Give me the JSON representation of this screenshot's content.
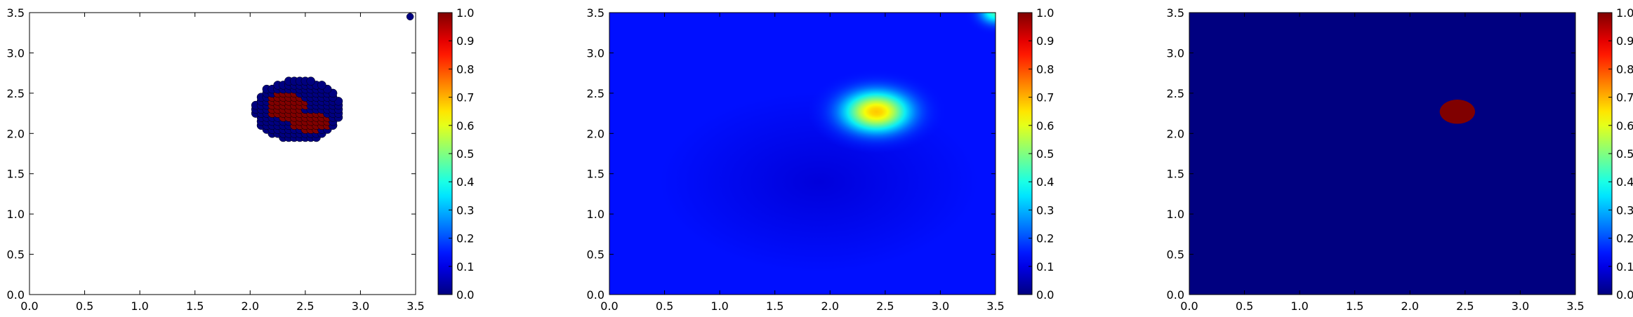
{
  "chart_data": [
    {
      "type": "scatter",
      "xlim": [
        0.0,
        3.5
      ],
      "ylim": [
        0.0,
        3.5
      ],
      "xticks": [
        "0.0",
        "0.5",
        "1.0",
        "1.5",
        "2.0",
        "2.5",
        "3.0",
        "3.5"
      ],
      "yticks": [
        "0.0",
        "0.5",
        "1.0",
        "1.5",
        "2.0",
        "2.5",
        "3.0",
        "3.5"
      ],
      "grid": false,
      "colormap": "jet",
      "colorbar": {
        "range": [
          0.0,
          1.0
        ],
        "ticks": [
          "0.0",
          "0.1",
          "0.2",
          "0.3",
          "0.4",
          "0.5",
          "0.6",
          "0.7",
          "0.8",
          "0.9",
          "1.0"
        ]
      },
      "points": {
        "grid_x": [
          2.05,
          2.1,
          2.15,
          2.2,
          2.25,
          2.3,
          2.35,
          2.4,
          2.45,
          2.5,
          2.55,
          2.6,
          2.65,
          2.7,
          2.75,
          2.8
        ],
        "grid_y": [
          1.95,
          2.0,
          2.05,
          2.1,
          2.15,
          2.2,
          2.25,
          2.3,
          2.35,
          2.4,
          2.45,
          2.5,
          2.55,
          2.6,
          2.65
        ],
        "outer_ellipse": {
          "cx": 2.43,
          "cy": 2.29,
          "rx": 0.39,
          "ry": 0.38,
          "value": 0.0
        },
        "inner_ellipses": [
          {
            "cx": 2.33,
            "cy": 2.36,
            "rx": 0.18,
            "ry": 0.17,
            "value": 1.0
          },
          {
            "cx": 2.55,
            "cy": 2.16,
            "rx": 0.17,
            "ry": 0.13,
            "value": 1.0
          }
        ],
        "extra": [
          {
            "x": 3.45,
            "y": 3.45,
            "value": 0.0
          }
        ]
      }
    },
    {
      "type": "heatmap",
      "xlim": [
        0.0,
        3.5
      ],
      "ylim": [
        0.0,
        3.5
      ],
      "xticks": [
        "0.0",
        "0.5",
        "1.0",
        "1.5",
        "2.0",
        "2.5",
        "3.0",
        "3.5"
      ],
      "yticks": [
        "0.0",
        "0.5",
        "1.0",
        "1.5",
        "2.0",
        "2.5",
        "3.0",
        "3.5"
      ],
      "grid": false,
      "colormap": "jet",
      "colorbar": {
        "range": [
          0.0,
          1.0
        ],
        "ticks": [
          "0.0",
          "0.1",
          "0.2",
          "0.3",
          "0.4",
          "0.5",
          "0.6",
          "0.7",
          "0.8",
          "0.9",
          "1.0"
        ]
      },
      "background_value": 0.14,
      "bumps": [
        {
          "cx": 2.42,
          "cy": 2.27,
          "sx": 0.48,
          "sy": 0.4,
          "peak": 0.54
        },
        {
          "cx": 3.5,
          "cy": 3.5,
          "sx": 0.22,
          "sy": 0.22,
          "peak": 0.3
        }
      ],
      "dips": [
        {
          "cx": 1.9,
          "cy": 1.4,
          "sx": 0.9,
          "sy": 0.7,
          "amount": 0.05
        }
      ]
    },
    {
      "type": "heatmap",
      "xlim": [
        0.0,
        3.5
      ],
      "ylim": [
        0.0,
        3.5
      ],
      "xticks": [
        "0.0",
        "0.5",
        "1.0",
        "1.5",
        "2.0",
        "2.5",
        "3.0",
        "3.5"
      ],
      "yticks": [
        "0.0",
        "0.5",
        "1.0",
        "1.5",
        "2.0",
        "2.5",
        "3.0",
        "3.5"
      ],
      "grid": false,
      "colormap": "jet",
      "colorbar": {
        "range": [
          0.0,
          1.0
        ],
        "ticks": [
          "0.0",
          "0.1",
          "0.2",
          "0.3",
          "0.4",
          "0.5",
          "0.6",
          "0.7",
          "0.8",
          "0.9",
          "1.0"
        ]
      },
      "background_value": 0.0,
      "region": {
        "cx": 2.43,
        "cy": 2.27,
        "rx": 0.16,
        "ry": 0.15,
        "value": 1.0
      }
    }
  ]
}
